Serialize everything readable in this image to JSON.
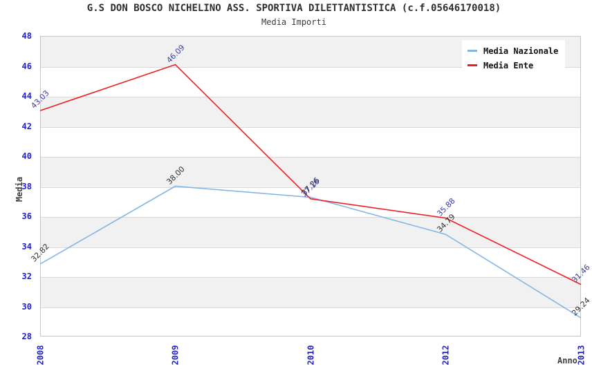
{
  "chart_data": {
    "type": "line",
    "title": "G.S DON BOSCO NICHELINO ASS. SPORTIVA DILETTANTISTICA (c.f.05646170018)",
    "subtitle": "Media Importi",
    "xlabel": "Anno",
    "ylabel": "Media",
    "categories": [
      "2008",
      "2009",
      "2010",
      "2012",
      "2013"
    ],
    "series": [
      {
        "name": "Media Nazionale",
        "color": "#84b6e4",
        "label_color": "#2f2f2f",
        "values": [
          32.82,
          38.0,
          37.26,
          34.79,
          29.24
        ],
        "labels": [
          "32.82",
          "38.00",
          "37.26",
          "34.79",
          "29.24"
        ]
      },
      {
        "name": "Media Ente",
        "color": "#ee1d23",
        "label_color": "#3a3aaa",
        "values": [
          43.03,
          46.09,
          37.16,
          35.88,
          31.46
        ],
        "labels": [
          "43.03",
          "46.09",
          "37.16",
          "35.88",
          "31.46"
        ]
      }
    ],
    "ylim": [
      28,
      48
    ],
    "ytick_step": 2,
    "grid": true,
    "band_fill": "#f1f1f1",
    "gridline_color": "#d9d9d9",
    "axis_tick_color": "#2222cc",
    "legend_position": "top-right"
  }
}
